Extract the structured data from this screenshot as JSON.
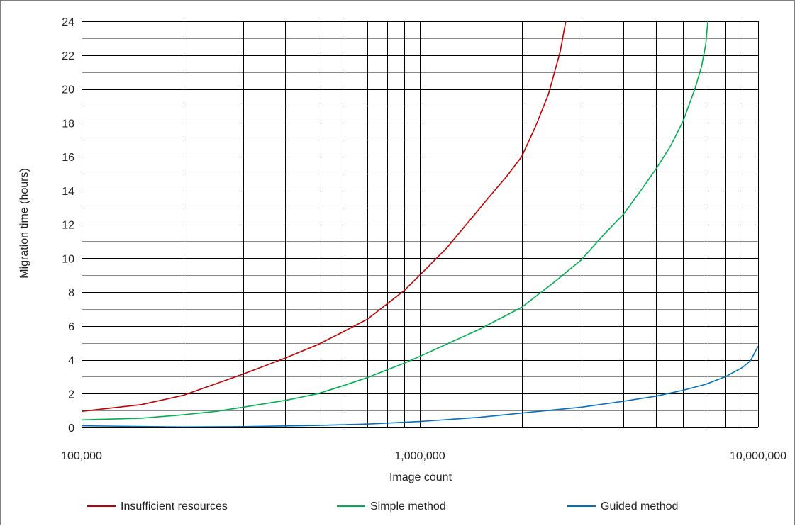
{
  "chart_data": {
    "type": "line",
    "title": "",
    "xlabel": "Image count",
    "ylabel": "Migration time (hours)",
    "x_scale": "log",
    "xlim": [
      100000,
      10000000
    ],
    "ylim": [
      0,
      24
    ],
    "x_tick_labels": [
      {
        "value": 100000,
        "label": "100,000"
      },
      {
        "value": 1000000,
        "label": "1,000,000"
      },
      {
        "value": 10000000,
        "label": "10,000,000"
      }
    ],
    "y_ticks": [
      0,
      2,
      4,
      6,
      8,
      10,
      12,
      14,
      16,
      18,
      20,
      22,
      24
    ],
    "grid": true,
    "legend_position": "bottom",
    "series": [
      {
        "name": "Insufficient resources",
        "color": "#c00000",
        "x": [
          100000,
          150000,
          200000,
          300000,
          400000,
          500000,
          600000,
          700000,
          800000,
          900000,
          1000000,
          1200000,
          1400000,
          1600000,
          1800000,
          2000000,
          2200000,
          2400000,
          2600000,
          2700000
        ],
        "y": [
          0.95,
          1.35,
          1.9,
          3.15,
          4.1,
          4.9,
          5.7,
          6.4,
          7.3,
          8.1,
          9.0,
          10.6,
          12.2,
          13.6,
          14.8,
          16.0,
          17.8,
          19.7,
          22.2,
          24.0
        ]
      },
      {
        "name": "Simple method",
        "color": "#00b050",
        "x": [
          100000,
          150000,
          200000,
          250000,
          300000,
          400000,
          500000,
          600000,
          700000,
          800000,
          900000,
          1000000,
          1500000,
          2000000,
          2500000,
          3000000,
          3500000,
          4000000,
          4500000,
          5000000,
          5500000,
          6000000,
          6500000,
          6800000,
          7000000,
          7100000
        ],
        "y": [
          0.45,
          0.55,
          0.75,
          0.95,
          1.2,
          1.6,
          2.0,
          2.5,
          2.95,
          3.4,
          3.8,
          4.2,
          5.8,
          7.1,
          8.6,
          9.9,
          11.4,
          12.6,
          14.0,
          15.3,
          16.6,
          18.1,
          20.0,
          21.3,
          22.6,
          24.0
        ]
      },
      {
        "name": "Guided method",
        "color": "#0070c0",
        "x": [
          100000,
          200000,
          300000,
          500000,
          700000,
          1000000,
          1500000,
          2000000,
          3000000,
          4000000,
          5000000,
          6000000,
          7000000,
          8000000,
          9000000,
          9500000,
          10000000
        ],
        "y": [
          0.1,
          0.03,
          0.05,
          0.12,
          0.2,
          0.35,
          0.6,
          0.85,
          1.2,
          1.55,
          1.85,
          2.2,
          2.55,
          3.0,
          3.55,
          3.95,
          4.8
        ]
      }
    ]
  }
}
